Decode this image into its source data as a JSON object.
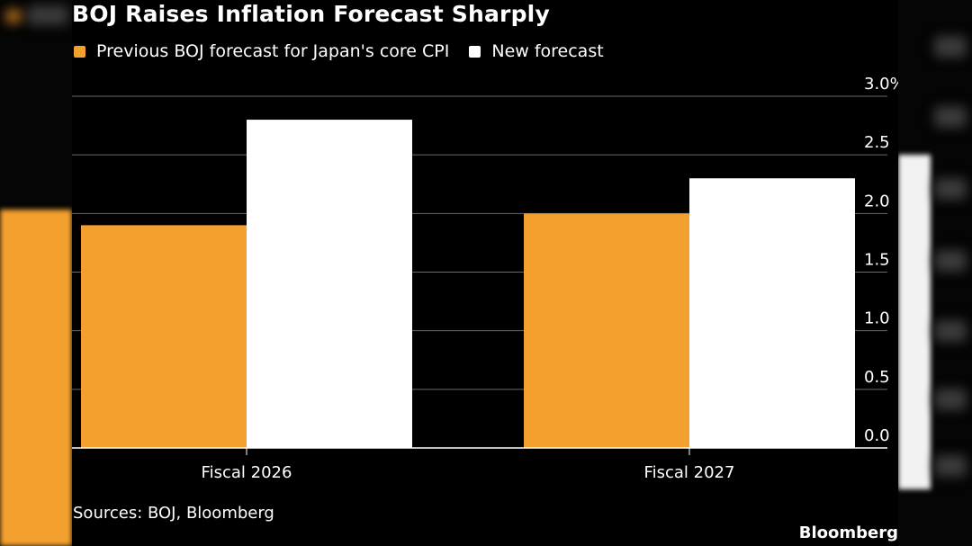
{
  "title": "BOJ Raises Inflation Forecast Sharply",
  "legend": [
    {
      "label": "Previous BOJ forecast for Japan's core CPI",
      "color": "#f4a02e"
    },
    {
      "label": "New forecast",
      "color": "#ffffff"
    }
  ],
  "source": "Sources: BOJ, Bloomberg",
  "brand": "Bloomberg",
  "chart_data": {
    "type": "bar",
    "categories": [
      "Fiscal 2026",
      "Fiscal 2027"
    ],
    "series": [
      {
        "name": "Previous BOJ forecast for Japan's core CPI",
        "values": [
          1.9,
          2.0
        ],
        "color": "#f4a02e"
      },
      {
        "name": "New forecast",
        "values": [
          2.8,
          2.3
        ],
        "color": "#ffffff"
      }
    ],
    "yticks": [
      "0.0",
      "0.5",
      "1.0",
      "1.5",
      "2.0",
      "2.5",
      "3.0%"
    ],
    "ylim": [
      0,
      3.0
    ],
    "grid": true,
    "legend_position": "top-left",
    "y_axis_side": "right"
  }
}
